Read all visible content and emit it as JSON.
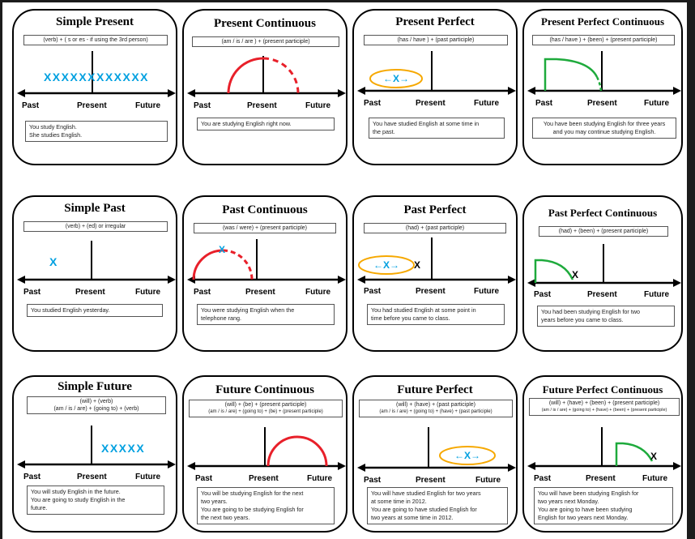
{
  "cards": [
    {
      "title": "Simple Present",
      "formula": [
        "(verb) + ( s or es - if using the 3rd person)"
      ],
      "axis": {
        "past": "Past",
        "present": "Present",
        "future": "Future"
      },
      "example": [
        "You study English.",
        "She studies English."
      ]
    },
    {
      "title": "Present Continuous",
      "formula": [
        "(am / is / are ) + (present participle)"
      ],
      "axis": {
        "past": "Past",
        "present": "Present",
        "future": "Future"
      },
      "example": [
        "You are studying English right now."
      ]
    },
    {
      "title": "Present Perfect",
      "formula": [
        "(has / have ) + (past participle)"
      ],
      "axis": {
        "past": "Past",
        "present": "Present",
        "future": "Future"
      },
      "example": [
        "You have studied English at some time in",
        "the past."
      ]
    },
    {
      "title": "Present Perfect Continuous",
      "formula": [
        "(has / have ) + (been) + (present participle)"
      ],
      "axis": {
        "past": "Past",
        "present": "Present",
        "future": "Future"
      },
      "example": [
        "You have been studying English for three years",
        "and you may continue studying English."
      ]
    },
    {
      "title": "Simple Past",
      "formula": [
        "(verb) + (ed)  or  irregular"
      ],
      "axis": {
        "past": "Past",
        "present": "Present",
        "future": "Future"
      },
      "example": [
        "You studied English yesterday."
      ]
    },
    {
      "title": "Past Continuous",
      "formula": [
        "(was / were) + (present participle)"
      ],
      "axis": {
        "past": "Past",
        "present": "Present",
        "future": "Future"
      },
      "example": [
        "You were studying English when the",
        "telephone rang."
      ]
    },
    {
      "title": "Past Perfect",
      "formula": [
        "(had) + (past participle)"
      ],
      "axis": {
        "past": "Past",
        "present": "Present",
        "future": "Future"
      },
      "example": [
        "You had studied English at some point in",
        "time before you came to class."
      ]
    },
    {
      "title": "Past Perfect Continuous",
      "formula": [
        "(had) + (been) + (present participle)"
      ],
      "axis": {
        "past": "Past",
        "present": "Present",
        "future": "Future"
      },
      "example": [
        "You had been studying English for two",
        "years before you came to class."
      ]
    },
    {
      "title": "Simple Future",
      "formula": [
        "(will) + (verb)",
        "(am / is / are) + (going to) + (verb)"
      ],
      "axis": {
        "past": "Past",
        "present": "Present",
        "future": "Future"
      },
      "example": [
        "You will study English in the future.",
        "You are going to study English in the",
        "future."
      ]
    },
    {
      "title": "Future Continuous",
      "formula": [
        "(will) + (be) + (present participle)",
        "(am / is / are) + (going to) + (be) + (present  participle)"
      ],
      "axis": {
        "past": "Past",
        "present": "Present",
        "future": "Future"
      },
      "example": [
        "You will be studying English for the next",
        "two years.",
        "You are going to be studying English for",
        "the next two years."
      ]
    },
    {
      "title": "Future Perfect",
      "formula": [
        "(will) + (have) + (past participle)",
        "(am / is / are) + (going to) + (have) + (past participle)"
      ],
      "axis": {
        "past": "Past",
        "present": "Present",
        "future": "Future"
      },
      "example": [
        "You will have studied English for two years",
        "at some time in 2012.",
        "You are going to have studied English for",
        "two years at some time in 2012."
      ]
    },
    {
      "title": "Future Perfect Continuous",
      "formula": [
        "(will) + (have) + (been) + (present participle)",
        "(am / is / are) + (going to) + (have) + (been) + (present participle)"
      ],
      "axis": {
        "past": "Past",
        "present": "Present",
        "future": "Future"
      },
      "example": [
        "You will have been studying English for",
        "two years next Monday.",
        "You are going to have been studying",
        "English for two years next Monday."
      ]
    }
  ],
  "marks": {
    "x": "X",
    "blue_row": "XXXXXXXXXXXX",
    "future_row": "XXXXX",
    "arrow_x": "←X→"
  },
  "colors": {
    "blue": "#00a0e0",
    "red": "#e8202a",
    "green": "#1eaa3c",
    "orange": "#f6a800"
  }
}
